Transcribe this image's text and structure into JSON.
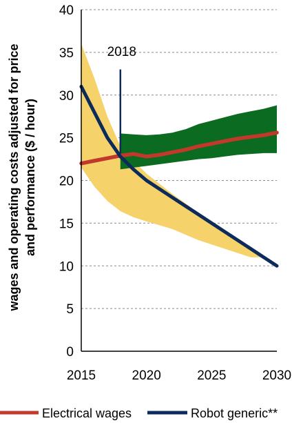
{
  "chart_data": {
    "type": "line",
    "title": "",
    "ylabel_lines": [
      "wages and operating costs adjusted for price",
      "and performance ($ / hour)"
    ],
    "xlabel": "",
    "xlim": [
      2015,
      2030
    ],
    "ylim": [
      0,
      40
    ],
    "x_ticks": [
      2015,
      2020,
      2025,
      2030
    ],
    "y_ticks": [
      0,
      5,
      10,
      15,
      20,
      25,
      30,
      35,
      40
    ],
    "grid": "horizontal-dashed",
    "legend_position": "bottom",
    "annotation": {
      "label": "2018",
      "x": 2018
    },
    "series": [
      {
        "name": "Electrical wages",
        "color": "#c0392b",
        "x": [
          2015,
          2016,
          2017,
          2018,
          2019,
          2020,
          2021,
          2022,
          2023,
          2024,
          2025,
          2026,
          2027,
          2028,
          2029,
          2030
        ],
        "values": [
          22.0,
          22.3,
          22.6,
          22.9,
          23.1,
          22.8,
          23.0,
          23.3,
          23.6,
          24.0,
          24.3,
          24.6,
          24.9,
          25.1,
          25.3,
          25.6
        ]
      },
      {
        "name": "Robot generic**",
        "color": "#0d2b5a",
        "x": [
          2015,
          2016,
          2017,
          2018,
          2019,
          2020,
          2022,
          2024,
          2026,
          2028,
          2030
        ],
        "values": [
          31.0,
          28.0,
          25.0,
          22.8,
          21.3,
          20.0,
          18.0,
          16.0,
          14.0,
          12.0,
          10.0
        ]
      }
    ],
    "bands": [
      {
        "for": "Robot generic**",
        "color": "#f5d26a",
        "x": [
          2015,
          2016,
          2017,
          2018,
          2019,
          2020,
          2022,
          2024,
          2026,
          2028,
          2029
        ],
        "upper": [
          36.0,
          32.0,
          27.5,
          24.0,
          22.3,
          20.8,
          18.4,
          16.2,
          14.0,
          11.9,
          11.0
        ],
        "lower": [
          21.5,
          19.3,
          17.6,
          16.4,
          15.7,
          15.2,
          14.3,
          13.0,
          12.0,
          11.0,
          11.0
        ]
      },
      {
        "for": "Electrical wages",
        "color": "#0b6b21",
        "x": [
          2018,
          2019,
          2020,
          2021,
          2022,
          2023,
          2024,
          2025,
          2026,
          2027,
          2028,
          2029,
          2030
        ],
        "upper": [
          25.5,
          25.4,
          25.3,
          25.4,
          25.6,
          26.0,
          26.6,
          27.0,
          27.4,
          27.8,
          28.1,
          28.4,
          28.8
        ],
        "lower": [
          21.3,
          21.5,
          21.7,
          21.9,
          22.1,
          22.3,
          22.5,
          22.6,
          22.8,
          23.0,
          23.1,
          23.2,
          23.2
        ]
      }
    ]
  }
}
